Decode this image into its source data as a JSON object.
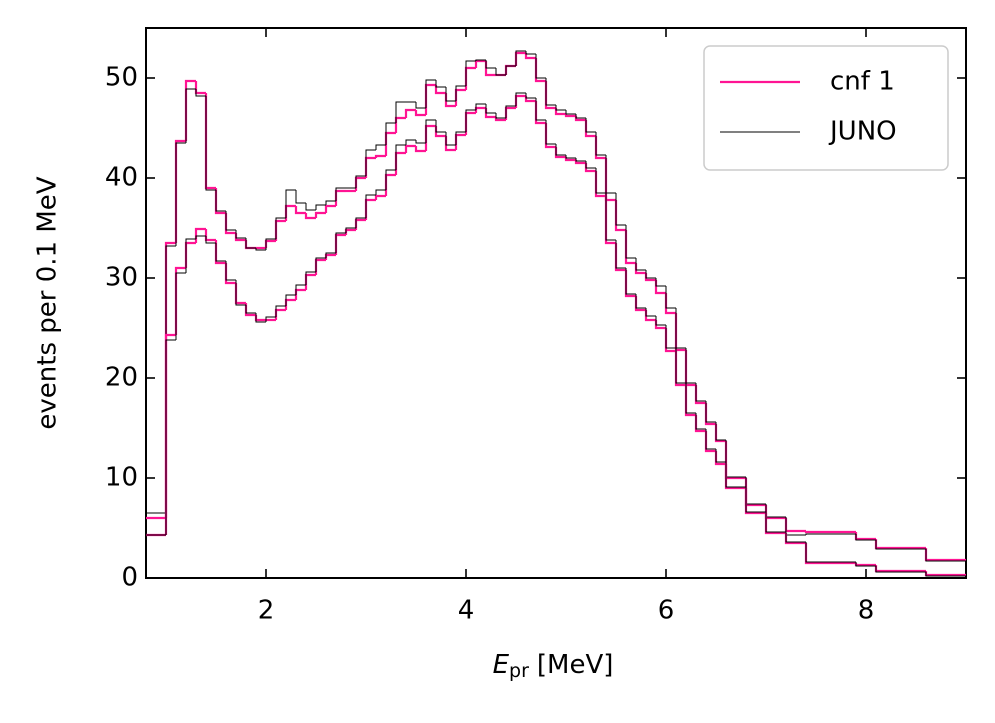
{
  "chart_data": {
    "type": "step_histogram",
    "xlabel": {
      "symbol": "E",
      "subscript": "pr",
      "unit": "[MeV]"
    },
    "ylabel": "events per 0.1 MeV",
    "xlim": [
      0.8,
      9.0
    ],
    "xticks": [
      2,
      4,
      6,
      8
    ],
    "ylim": [
      0,
      55
    ],
    "yticks": [
      0,
      10,
      20,
      30,
      40,
      50
    ],
    "legend": "upper right",
    "bins": [
      0.8,
      1.0,
      1.1,
      1.2,
      1.3,
      1.4,
      1.5,
      1.6,
      1.7,
      1.8,
      1.9,
      2.0,
      2.1,
      2.2,
      2.3,
      2.4,
      2.5,
      2.6,
      2.7,
      2.8,
      2.9,
      3.0,
      3.1,
      3.2,
      3.3,
      3.4,
      3.5,
      3.6,
      3.7,
      3.8,
      3.9,
      4.0,
      4.1,
      4.2,
      4.3,
      4.4,
      4.5,
      4.6,
      4.7,
      4.8,
      4.9,
      5.0,
      5.1,
      5.2,
      5.3,
      5.4,
      5.5,
      5.6,
      5.7,
      5.8,
      5.9,
      6.0,
      6.1,
      6.2,
      6.3,
      6.4,
      6.5,
      6.6,
      6.8,
      7.0,
      7.2,
      7.4,
      7.9,
      8.1,
      8.6,
      9.0
    ],
    "series": [
      {
        "name": "cnf 1",
        "color": "#ff1493",
        "width": 2.2,
        "values": [
          6.0,
          33.5,
          43.7,
          49.7,
          48.5,
          39,
          36.5,
          34.5,
          33.8,
          33,
          33,
          33.7,
          35.7,
          37.2,
          36.5,
          36,
          36.5,
          37.2,
          38.7,
          38.7,
          40,
          42,
          42.2,
          44.5,
          46,
          46.8,
          46.3,
          49.3,
          48.5,
          47.2,
          48.8,
          51,
          51.7,
          50.3,
          50.3,
          51.2,
          52.5,
          52,
          49.7,
          47,
          46.4,
          46.2,
          45.8,
          44.2,
          42,
          37.8,
          34.8,
          31.5,
          30.5,
          29.8,
          28.5,
          26.5,
          22.8,
          19.3,
          17.5,
          15.4,
          13.7,
          10.0,
          7.3,
          6.0,
          4.7,
          4.6,
          3.9,
          3.0,
          1.8
        ]
      },
      {
        "name": "JUNO",
        "color": "#000000",
        "width": 1,
        "values": [
          6.5,
          33.2,
          43.5,
          48.9,
          48.2,
          38.8,
          36.7,
          34.8,
          34,
          33,
          32.8,
          33.9,
          36,
          38.8,
          37.5,
          36.8,
          37.3,
          37.7,
          39,
          39,
          40.2,
          42.8,
          43.3,
          45.5,
          47.6,
          47.6,
          47,
          49.8,
          49.1,
          47.7,
          49.2,
          51.7,
          51.8,
          51,
          50.3,
          51.2,
          52.7,
          52.4,
          50,
          47.3,
          46.8,
          46.4,
          46,
          44.6,
          42.3,
          38.5,
          35.3,
          32,
          30.8,
          30,
          29.2,
          27,
          23,
          19.5,
          17.7,
          15.6,
          13.8,
          10.1,
          7.4,
          6.1,
          4.3,
          4.4,
          3.8,
          2.9,
          1.7
        ]
      },
      {
        "name": "cnf 1",
        "color": "#ff1493",
        "width": 2.2,
        "values": [
          4.3,
          24.3,
          31,
          33.5,
          34.9,
          33.8,
          31.5,
          29.5,
          27.5,
          26.3,
          25.8,
          25.8,
          26.8,
          27.8,
          28.8,
          30.3,
          31.8,
          32.3,
          34.3,
          34.8,
          35.8,
          37.8,
          38.2,
          40.3,
          42.5,
          43.2,
          42.7,
          45.2,
          44.2,
          42.8,
          44.3,
          46.5,
          47,
          46.1,
          45.8,
          47,
          48.2,
          47.7,
          45.5,
          43.1,
          42.1,
          41.8,
          41.5,
          40.7,
          38.2,
          33.5,
          30.8,
          28.2,
          26.8,
          25.8,
          25,
          22.7,
          19.3,
          16.3,
          14.7,
          12.7,
          11.4,
          9.0,
          6.5,
          4.5,
          3.5,
          1.5,
          1.3,
          0.7,
          0.3
        ]
      },
      {
        "name": "JUNO",
        "color": "#000000",
        "width": 1,
        "values": [
          4.3,
          23.8,
          30.5,
          33.9,
          34.2,
          33.5,
          31.7,
          29.8,
          27.3,
          26.5,
          25.6,
          26.1,
          27.2,
          28.3,
          29.3,
          30.6,
          32,
          32.5,
          34.5,
          35,
          36,
          38.3,
          38.8,
          40.8,
          43.3,
          43.8,
          43.5,
          45.8,
          44.6,
          43.3,
          44.6,
          46.8,
          47.4,
          46.5,
          46,
          47.2,
          48.5,
          48,
          45.8,
          43.4,
          42.3,
          42,
          41.7,
          41,
          38.5,
          33.8,
          31,
          28.4,
          27,
          26.2,
          25.3,
          23,
          19.5,
          16.5,
          14.9,
          12.9,
          11.6,
          9.1,
          6.6,
          4.6,
          3.6,
          1.6,
          1.2,
          0.6,
          0.2
        ]
      }
    ]
  }
}
